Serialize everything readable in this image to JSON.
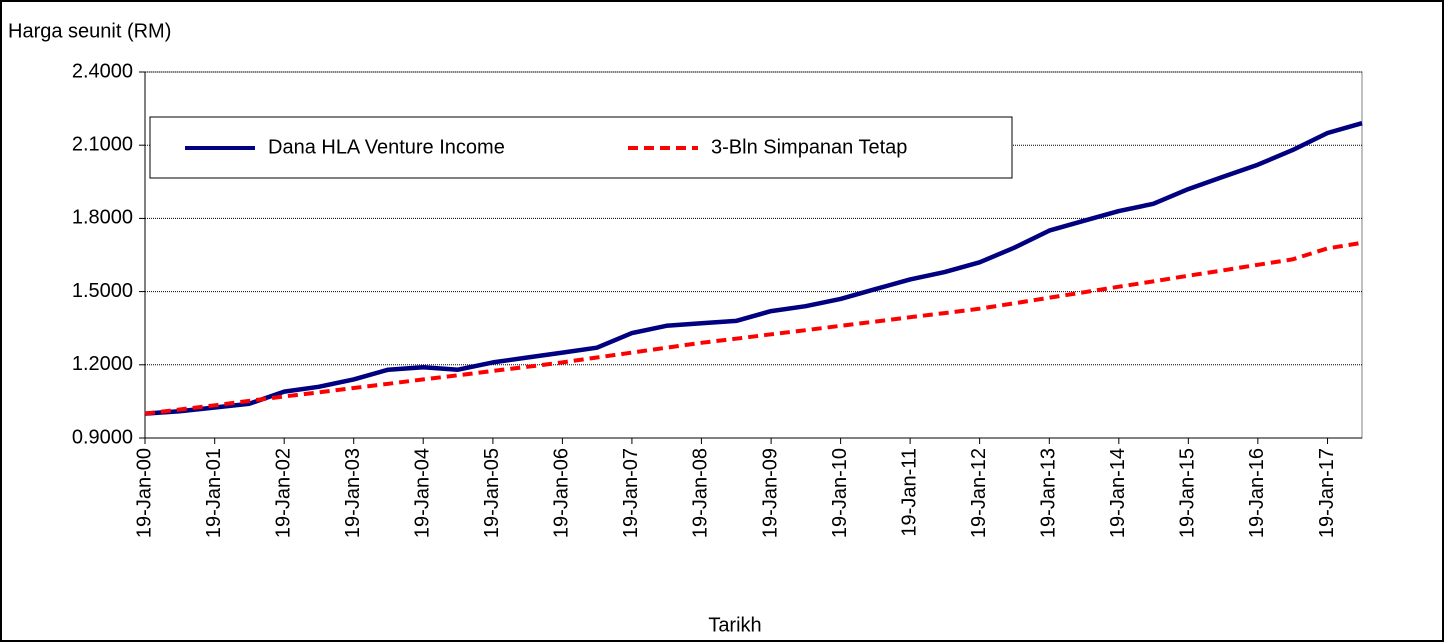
{
  "chart_data": {
    "type": "line",
    "title": "Harga seunit (RM)",
    "x_label": "Tarikh",
    "x": [
      "2000-01-19",
      "2000-07-19",
      "2001-01-19",
      "2001-07-19",
      "2002-01-19",
      "2002-07-19",
      "2003-01-19",
      "2003-07-19",
      "2004-01-19",
      "2004-07-19",
      "2005-01-19",
      "2005-07-19",
      "2006-01-19",
      "2006-07-19",
      "2007-01-19",
      "2007-07-19",
      "2008-01-19",
      "2008-07-19",
      "2009-01-19",
      "2009-07-19",
      "2010-01-19",
      "2010-07-19",
      "2011-01-19",
      "2011-07-19",
      "2012-01-19",
      "2012-07-19",
      "2013-01-19",
      "2013-07-19",
      "2014-01-19",
      "2014-07-19",
      "2015-01-19",
      "2015-07-19",
      "2016-01-19",
      "2016-07-19",
      "2017-01-19",
      "2017-07-19"
    ],
    "series": [
      {
        "name": "Dana HLA Venture Income",
        "color": "#000080",
        "dash": false,
        "values": [
          1.0,
          1.01,
          1.025,
          1.04,
          1.09,
          1.11,
          1.14,
          1.18,
          1.19,
          1.18,
          1.21,
          1.23,
          1.25,
          1.27,
          1.33,
          1.36,
          1.37,
          1.38,
          1.42,
          1.44,
          1.47,
          1.51,
          1.55,
          1.58,
          1.62,
          1.68,
          1.75,
          1.79,
          1.83,
          1.86,
          1.92,
          1.97,
          2.02,
          2.08,
          2.15,
          2.19
        ]
      },
      {
        "name": "3-Bln Simpanan Tetap",
        "color": "#ff0000",
        "dash": true,
        "values": [
          1.0,
          1.017,
          1.034,
          1.052,
          1.07,
          1.087,
          1.105,
          1.122,
          1.14,
          1.157,
          1.175,
          1.192,
          1.21,
          1.23,
          1.25,
          1.27,
          1.29,
          1.307,
          1.325,
          1.342,
          1.36,
          1.377,
          1.395,
          1.412,
          1.43,
          1.452,
          1.475,
          1.497,
          1.52,
          1.542,
          1.565,
          1.587,
          1.61,
          1.632,
          1.677,
          1.7
        ]
      }
    ],
    "xlim": [
      "2000-01-19",
      "2017-07-19"
    ],
    "xticks": [
      {
        "value": "2000-01-19",
        "label": "19-Jan-00"
      },
      {
        "value": "2001-01-19",
        "label": "19-Jan-01"
      },
      {
        "value": "2002-01-19",
        "label": "19-Jan-02"
      },
      {
        "value": "2003-01-19",
        "label": "19-Jan-03"
      },
      {
        "value": "2004-01-19",
        "label": "19-Jan-04"
      },
      {
        "value": "2005-01-19",
        "label": "19-Jan-05"
      },
      {
        "value": "2006-01-19",
        "label": "19-Jan-06"
      },
      {
        "value": "2007-01-19",
        "label": "19-Jan-07"
      },
      {
        "value": "2008-01-19",
        "label": "19-Jan-08"
      },
      {
        "value": "2009-01-19",
        "label": "19-Jan-09"
      },
      {
        "value": "2010-01-19",
        "label": "19-Jan-10"
      },
      {
        "value": "2011-01-19",
        "label": "19-Jan-11"
      },
      {
        "value": "2012-01-19",
        "label": "19-Jan-12"
      },
      {
        "value": "2013-01-19",
        "label": "19-Jan-13"
      },
      {
        "value": "2014-01-19",
        "label": "19-Jan-14"
      },
      {
        "value": "2015-01-19",
        "label": "19-Jan-15"
      },
      {
        "value": "2016-01-19",
        "label": "19-Jan-16"
      },
      {
        "value": "2017-01-19",
        "label": "19-Jan-17"
      }
    ],
    "ylim": [
      0.9,
      2.4
    ],
    "yticks": [
      {
        "value": 0.9,
        "label": "0.9000"
      },
      {
        "value": 1.2,
        "label": "1.2000"
      },
      {
        "value": 1.5,
        "label": "1.5000"
      },
      {
        "value": 1.8,
        "label": "1.8000"
      },
      {
        "value": 2.1,
        "label": "2.1000"
      },
      {
        "value": 2.4,
        "label": "2.4000"
      }
    ],
    "grid": true,
    "legend": "top-left"
  }
}
